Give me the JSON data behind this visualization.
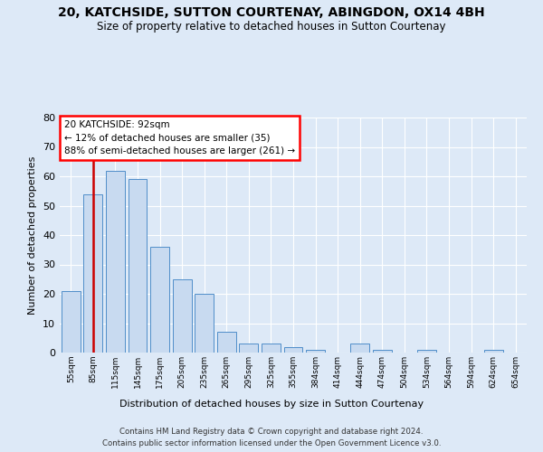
{
  "title": "20, KATCHSIDE, SUTTON COURTENAY, ABINGDON, OX14 4BH",
  "subtitle": "Size of property relative to detached houses in Sutton Courtenay",
  "xlabel": "Distribution of detached houses by size in Sutton Courtenay",
  "ylabel": "Number of detached properties",
  "bin_labels": [
    "55sqm",
    "85sqm",
    "115sqm",
    "145sqm",
    "175sqm",
    "205sqm",
    "235sqm",
    "265sqm",
    "295sqm",
    "325sqm",
    "355sqm",
    "384sqm",
    "414sqm",
    "444sqm",
    "474sqm",
    "504sqm",
    "534sqm",
    "564sqm",
    "594sqm",
    "624sqm",
    "654sqm"
  ],
  "bar_values": [
    21,
    54,
    62,
    59,
    36,
    25,
    20,
    7,
    3,
    3,
    2,
    1,
    0,
    3,
    1,
    0,
    1,
    0,
    0,
    1,
    0
  ],
  "bar_color": "#c8daf0",
  "bar_edge_color": "#4f8ec9",
  "property_bin_index": 1,
  "annotation_line1": "20 KATCHSIDE: 92sqm",
  "annotation_line2": "← 12% of detached houses are smaller (35)",
  "annotation_line3": "88% of semi-detached houses are larger (261) →",
  "vline_color": "#cc0000",
  "ylim_max": 80,
  "yticks": [
    0,
    10,
    20,
    30,
    40,
    50,
    60,
    70,
    80
  ],
  "bg_color": "#dde9f7",
  "grid_color": "#ffffff",
  "footer_line1": "Contains HM Land Registry data © Crown copyright and database right 2024.",
  "footer_line2": "Contains public sector information licensed under the Open Government Licence v3.0."
}
